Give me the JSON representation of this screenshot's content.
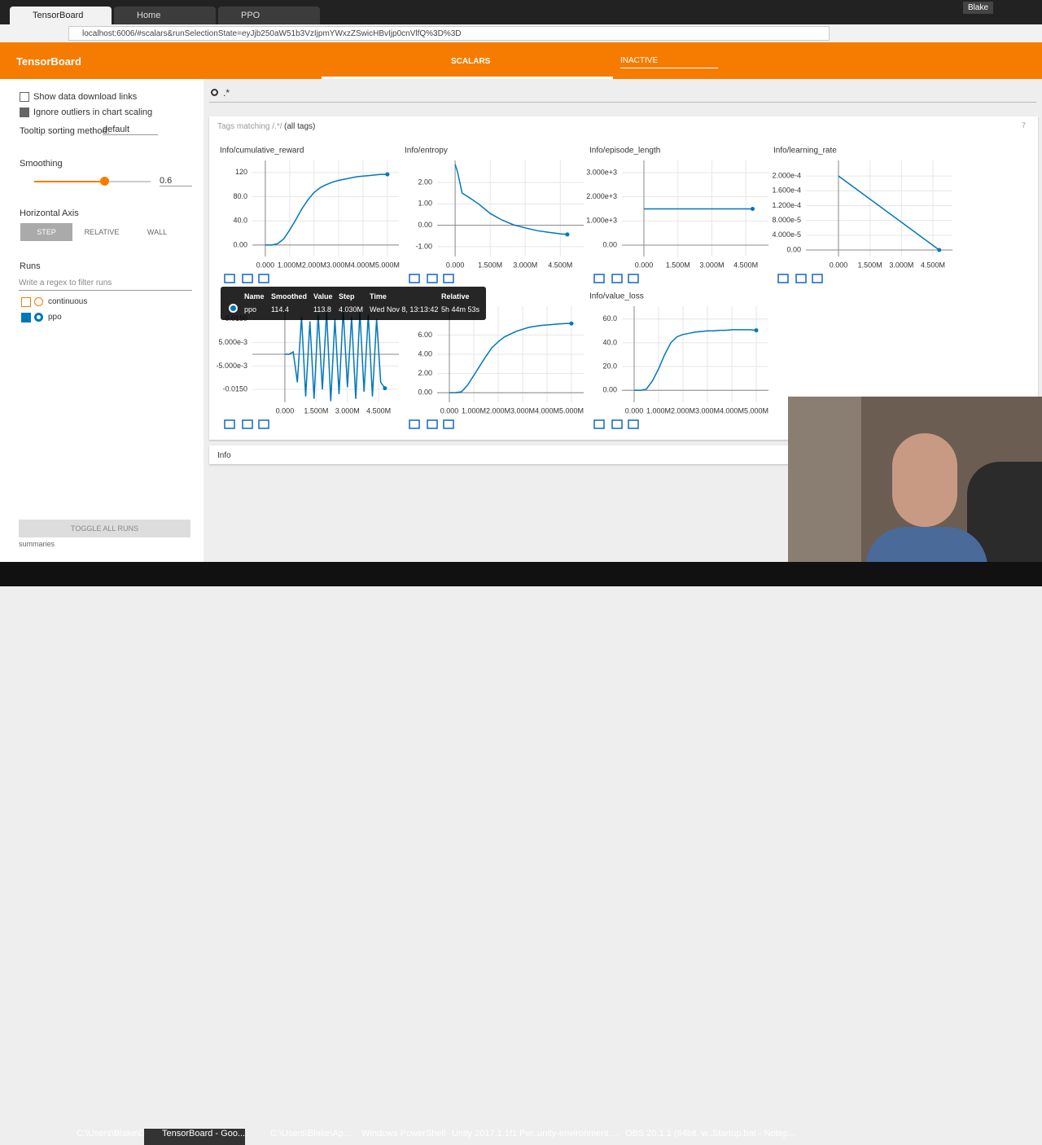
{
  "browser": {
    "tabs": [
      "TensorBoard",
      "Home",
      "PPO"
    ],
    "url": "localhost:6006/#scalars&runSelectionState=eyJjb250aW51b3VzIjpmYWxzZSwicHBvIjp0cnVlfQ%3D%3D",
    "user": "Blake"
  },
  "header": {
    "title": "TensorBoard",
    "tab": "SCALARS",
    "inactive": "INACTIVE"
  },
  "sidebar": {
    "show_download": "Show data download links",
    "ignore_outliers": "Ignore outliers in chart scaling",
    "tooltip_label": "Tooltip sorting method:",
    "tooltip_value": "default",
    "smoothing_label": "Smoothing",
    "smoothing_value": 0.6,
    "horizontal_axis": "Horizontal Axis",
    "axis_options": [
      "STEP",
      "RELATIVE",
      "WALL"
    ],
    "runs_label": "Runs",
    "runs_filter": "Write a regex to filter runs",
    "runs": [
      "continuous",
      "ppo"
    ],
    "toggle": "TOGGLE ALL RUNS",
    "footer": "summaries"
  },
  "search": ".*",
  "tags": {
    "prefix": "Tags matching /.*/",
    "suffix": "(all tags)",
    "count": 7
  },
  "charts": [
    {
      "type": "line",
      "title": "Info/cumulative_reward",
      "color": "#0077bb",
      "x": [
        0,
        250000,
        500000,
        750000,
        1000000,
        1250000,
        1500000,
        1750000,
        2000000,
        2250000,
        2500000,
        2750000,
        3000000,
        3250000,
        3500000,
        3750000,
        4000000,
        4250000,
        4500000,
        4750000,
        5000000
      ],
      "values": [
        0,
        0,
        2,
        10,
        25,
        42,
        60,
        75,
        87,
        95,
        100,
        104,
        107,
        109,
        111,
        113,
        114,
        115,
        116,
        117,
        117
      ],
      "xlim": [
        -530000,
        5470000
      ],
      "ylim": [
        -19,
        140
      ],
      "xticks": [
        {
          "value": 0,
          "label": "0.000"
        },
        {
          "value": 1000000,
          "label": "1.000M"
        },
        {
          "value": 2000000,
          "label": "2.000M"
        },
        {
          "value": 3000000,
          "label": "3.000M"
        },
        {
          "value": 4000000,
          "label": "4.000M"
        },
        {
          "value": 5000000,
          "label": "5.000M"
        }
      ],
      "yticks": [
        {
          "value": 0,
          "label": "0.00"
        },
        {
          "value": 40,
          "label": "40.0"
        },
        {
          "value": 80,
          "label": "80.0"
        },
        120
      ]
    },
    {
      "type": "line",
      "title": "Info/entropy",
      "color": "#0077bb",
      "x": [
        0,
        100000,
        300000,
        600000,
        1000000,
        1500000,
        2000000,
        2500000,
        3000000,
        3500000,
        4000000,
        4500000,
        4800000
      ],
      "values": [
        2.85,
        2.5,
        1.5,
        1.3,
        1.0,
        0.55,
        0.25,
        0.02,
        -0.12,
        -0.25,
        -0.33,
        -0.4,
        -0.43
      ],
      "xlim": [
        -770000,
        5500000
      ],
      "ylim": [
        -1.46,
        3.03
      ],
      "xticks": [
        {
          "value": 0,
          "label": "0.000"
        },
        {
          "value": 1500000,
          "label": "1.500M"
        },
        {
          "value": 3000000,
          "label": "3.000M"
        },
        {
          "value": 4500000,
          "label": "4.500M"
        }
      ],
      "yticks": [
        {
          "value": -1,
          "label": "-1.00"
        },
        {
          "value": 0,
          "label": "0.00"
        },
        {
          "value": 1,
          "label": "1.00"
        },
        {
          "value": 2,
          "label": "2.00"
        }
      ]
    },
    {
      "type": "line",
      "title": "Info/episode_length",
      "color": "#0077bb",
      "x": [
        0,
        4800000
      ],
      "values": [
        1500,
        1500
      ],
      "xlim": [
        -970000,
        5500000
      ],
      "ylim": [
        -472,
        3505
      ],
      "xticks": [
        {
          "value": 0,
          "label": "0.000"
        },
        {
          "value": 1500000,
          "label": "1.500M"
        },
        {
          "value": 3000000,
          "label": "3.000M"
        },
        {
          "value": 4500000,
          "label": "4.500M"
        }
      ],
      "yticks": [
        {
          "value": 0,
          "label": "0.00"
        },
        {
          "value": 1000,
          "label": "1.000e+3"
        },
        {
          "value": 2000,
          "label": "2.000e+3"
        },
        {
          "value": 3000,
          "label": "3.000e+3"
        }
      ]
    },
    {
      "type": "line",
      "title": "Info/learning_rate",
      "color": "#0077bb",
      "x": [
        0,
        4800000
      ],
      "values": [
        0.0002,
        0
      ],
      "xlim": [
        -1550000,
        5430000
      ],
      "ylim": [
        -1.76e-05,
        0.000242
      ],
      "xticks": [
        {
          "value": 0,
          "label": "0.000"
        },
        {
          "value": 1500000,
          "label": "1.500M"
        },
        {
          "value": 3000000,
          "label": "3.000M"
        },
        {
          "value": 4500000,
          "label": "4.500M"
        }
      ],
      "yticks": [
        {
          "value": 0,
          "label": "0.00"
        },
        {
          "value": 4e-05,
          "label": "4.000e-5"
        },
        {
          "value": 8e-05,
          "label": "8.000e-5"
        },
        {
          "value": 0.00012,
          "label": "1.200e-4"
        },
        {
          "value": 0.00016,
          "label": "1.600e-4"
        },
        {
          "value": 0.0002,
          "label": "2.000e-4"
        }
      ]
    },
    {
      "type": "line",
      "color": "#0077bb",
      "x": [
        0,
        200000,
        400000,
        600000,
        800000,
        1000000,
        1200000,
        1400000,
        1600000,
        1800000,
        2000000,
        2200000,
        2400000,
        2600000,
        2800000,
        3000000,
        3200000,
        3400000,
        3600000,
        3800000,
        4000000,
        4200000,
        4400000,
        4600000,
        4800000
      ],
      "values": [
        0,
        0,
        0.001,
        -0.012,
        0.016,
        -0.018,
        0.014,
        -0.019,
        0.017,
        -0.015,
        0.018,
        -0.02,
        0.015,
        -0.017,
        0.019,
        -0.014,
        0.016,
        -0.019,
        0.018,
        -0.016,
        0.017,
        -0.018,
        0.015,
        -0.012,
        -0.0145
      ],
      "xlim": [
        -1560000,
        5470000
      ],
      "ylim": [
        -0.0205,
        0.0205
      ],
      "xticks": [
        {
          "value": 0,
          "label": "0.000"
        },
        {
          "value": 1500000,
          "label": "1.500M"
        },
        {
          "value": 3000000,
          "label": "3.000M"
        },
        {
          "value": 4500000,
          "label": "4.500M"
        }
      ],
      "yticks": [
        {
          "value": -0.015,
          "label": "-0.0150"
        },
        {
          "value": -0.005,
          "label": "-5.000e-3"
        },
        {
          "value": 0.005,
          "label": "5.000e-3"
        },
        {
          "value": 0.015,
          "label": "0.0150"
        }
      ]
    },
    {
      "type": "line",
      "color": "#0077bb",
      "x": [
        0,
        250000,
        500000,
        750000,
        1000000,
        1250000,
        1500000,
        1750000,
        2000000,
        2250000,
        2500000,
        2750000,
        3000000,
        3250000,
        3500000,
        3750000,
        4000000,
        4250000,
        4500000,
        4750000,
        5000000
      ],
      "values": [
        0,
        0,
        0.1,
        0.8,
        1.8,
        2.8,
        3.8,
        4.7,
        5.3,
        5.8,
        6.1,
        6.4,
        6.6,
        6.8,
        6.9,
        7.0,
        7.05,
        7.1,
        7.15,
        7.2,
        7.2
      ],
      "xlim": [
        -500000,
        5500000
      ],
      "ylim": [
        -1,
        9
      ],
      "xticks": [
        {
          "value": 0,
          "label": "0.000"
        },
        {
          "value": 1000000,
          "label": "1.000M"
        },
        {
          "value": 2000000,
          "label": "2.000M"
        },
        {
          "value": 3000000,
          "label": "3.000M"
        },
        {
          "value": 4000000,
          "label": "4.000M"
        },
        {
          "value": 5000000,
          "label": "5.000M"
        }
      ],
      "yticks": [
        {
          "value": 0,
          "label": "0.00"
        },
        {
          "value": 2,
          "label": "2.00"
        },
        {
          "value": 4,
          "label": "4.00"
        },
        {
          "value": 6,
          "label": "6.00"
        }
      ]
    },
    {
      "type": "line",
      "title": "Info/value_loss",
      "color": "#0077bb",
      "x": [
        0,
        250000,
        500000,
        750000,
        1000000,
        1250000,
        1500000,
        1750000,
        2000000,
        2250000,
        2500000,
        2750000,
        3000000,
        3250000,
        3500000,
        3750000,
        4000000,
        4250000,
        4500000,
        4750000,
        5000000
      ],
      "values": [
        0,
        0,
        1,
        8,
        18,
        30,
        40,
        45,
        47,
        48,
        49,
        49.5,
        50,
        50,
        50.5,
        50.5,
        51,
        51,
        51,
        51,
        50.5
      ],
      "xlim": [
        -500000,
        5500000
      ],
      "ylim": [
        -10.1,
        70.8
      ],
      "xticks": [
        {
          "value": 0,
          "label": "0.000"
        },
        {
          "value": 1000000,
          "label": "1.000M"
        },
        {
          "value": 2000000,
          "label": "2.000M"
        },
        {
          "value": 3000000,
          "label": "3.000M"
        },
        {
          "value": 4000000,
          "label": "4.000M"
        },
        {
          "value": 5000000,
          "label": "5.000M"
        }
      ],
      "yticks": [
        {
          "value": 0,
          "label": "0.00"
        },
        {
          "value": 20,
          "label": "20.0"
        },
        {
          "value": 40,
          "label": "40.0"
        },
        {
          "value": 60,
          "label": "60.0"
        }
      ]
    }
  ],
  "tooltip": {
    "headers": [
      "Name",
      "Smoothed",
      "Value",
      "Step",
      "Time",
      "Relative"
    ],
    "row": [
      "ppo",
      "114.4",
      "113.8",
      "4.030M",
      "Wed Nov 8, 13:13:42",
      "5h 44m 53s"
    ]
  },
  "section2": "Info",
  "taskbar": [
    "C:\\Users\\Blake\\Des...",
    "TensorBoard - Goo...",
    "C:\\Users\\Blake\\Ap...",
    "Windows PowerShell",
    "Unity 2017.1.1f1 Per...",
    "unity-environment ...",
    "OBS 20.1.1 (64bit, w...",
    "Startup.bat - Notep..."
  ]
}
